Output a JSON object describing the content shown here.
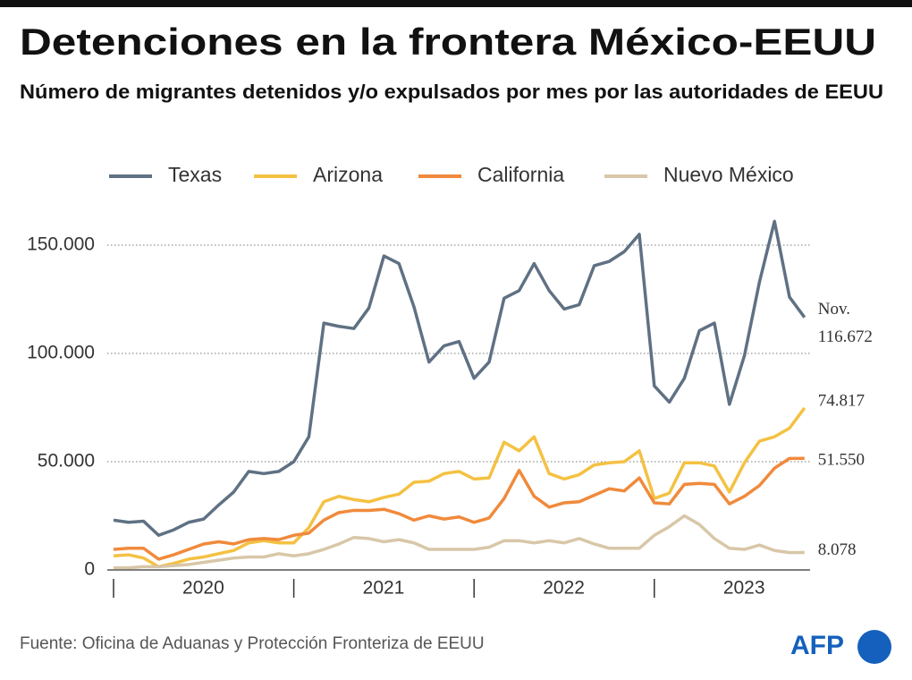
{
  "chart_data": {
    "type": "line",
    "title": "Detenciones en la frontera México-EEUU",
    "subtitle": "Número de migrantes detenidos y/o expulsados por mes por las autoridades de EEUU",
    "source": "Fuente: Oficina de Aduanas y Protección Fronteriza de EEUU",
    "logo": "AFP",
    "annotation": "Nov.",
    "categories": [
      "2020",
      null,
      null,
      null,
      null,
      null,
      null,
      null,
      null,
      null,
      null,
      null,
      "2021",
      null,
      null,
      null,
      null,
      null,
      null,
      null,
      null,
      null,
      null,
      null,
      "2022",
      null,
      null,
      null,
      null,
      null,
      null,
      null,
      null,
      null,
      null,
      null,
      "2023",
      null,
      null,
      null,
      null,
      null,
      null,
      null,
      null,
      null,
      null
    ],
    "ylim": [
      0,
      160000
    ],
    "yticks": [
      0,
      {
        "value": 50000,
        "label": "50.000"
      },
      {
        "value": 100000,
        "label": "100.000"
      },
      {
        "value": 150000,
        "label": "150.000"
      }
    ],
    "grid": true,
    "legend": "top",
    "series": [
      {
        "name": "Texas",
        "color": "#5f7183",
        "values": [
          23000,
          22000,
          22500,
          16000,
          18500,
          22000,
          23500,
          30000,
          36000,
          45500,
          44500,
          45500,
          50000,
          61500,
          114000,
          112500,
          111500,
          121000,
          145000,
          141500,
          121500,
          96000,
          103500,
          105500,
          88500,
          96000,
          125500,
          129000,
          141500,
          129000,
          120500,
          122500,
          140500,
          142500,
          147000,
          155000,
          85000,
          77500,
          88500,
          110500,
          114000,
          76500,
          99000,
          133000,
          161000,
          126000,
          116672
        ],
        "value_labels": [
          null,
          null,
          null,
          null,
          null,
          null,
          null,
          null,
          null,
          null,
          null,
          null,
          null,
          null,
          null,
          null,
          null,
          null,
          null,
          null,
          null,
          null,
          null,
          null,
          null,
          null,
          null,
          null,
          null,
          null,
          null,
          null,
          null,
          null,
          null,
          null,
          null,
          null,
          null,
          null,
          null,
          null,
          null,
          null,
          null,
          null,
          "116.672"
        ]
      },
      {
        "name": "Arizona",
        "color": "#f4c142",
        "values": [
          6500,
          7000,
          5500,
          1500,
          3000,
          5000,
          6000,
          7500,
          9000,
          12500,
          13500,
          12500,
          12500,
          19500,
          31500,
          34000,
          32500,
          31500,
          33500,
          35000,
          40500,
          41000,
          44500,
          45500,
          42000,
          42500,
          59000,
          55000,
          61500,
          44500,
          42000,
          44000,
          48500,
          49500,
          50000,
          55000,
          33000,
          35500,
          49500,
          49500,
          48000,
          36000,
          49500,
          59500,
          61500,
          65500,
          74817
        ],
        "value_labels": [
          null,
          null,
          null,
          null,
          null,
          null,
          null,
          null,
          null,
          null,
          null,
          null,
          null,
          null,
          null,
          null,
          null,
          null,
          null,
          null,
          null,
          null,
          null,
          null,
          null,
          null,
          null,
          null,
          null,
          null,
          null,
          null,
          null,
          null,
          null,
          null,
          null,
          null,
          null,
          null,
          null,
          null,
          null,
          null,
          null,
          null,
          "74.817"
        ]
      },
      {
        "name": "California",
        "color": "#f08a3c",
        "values": [
          9500,
          10000,
          10000,
          5000,
          7000,
          9500,
          12000,
          13000,
          12000,
          14000,
          14500,
          14000,
          16000,
          17000,
          23000,
          26500,
          27500,
          27500,
          28000,
          26000,
          23000,
          25000,
          23500,
          24500,
          22000,
          24000,
          33000,
          46000,
          34000,
          29000,
          31000,
          31500,
          34500,
          37500,
          36500,
          42500,
          31000,
          30500,
          39500,
          40000,
          39500,
          30500,
          34000,
          39000,
          47000,
          51500,
          51550
        ],
        "value_labels": [
          null,
          null,
          null,
          null,
          null,
          null,
          null,
          null,
          null,
          null,
          null,
          null,
          null,
          null,
          null,
          null,
          null,
          null,
          null,
          null,
          null,
          null,
          null,
          null,
          null,
          null,
          null,
          null,
          null,
          null,
          null,
          null,
          null,
          null,
          null,
          null,
          null,
          null,
          null,
          null,
          null,
          null,
          null,
          null,
          null,
          null,
          "51.550"
        ]
      },
      {
        "name": "Nuevo México",
        "color": "#d8c7a8",
        "values": [
          1000,
          1000,
          1500,
          1500,
          2000,
          2500,
          3500,
          4500,
          5500,
          6000,
          6000,
          7500,
          6500,
          7500,
          9500,
          12000,
          15000,
          14500,
          13000,
          14000,
          12500,
          9500,
          9500,
          9500,
          9500,
          10500,
          13500,
          13500,
          12500,
          13500,
          12500,
          14500,
          12000,
          10000,
          10000,
          10000,
          16000,
          20000,
          25000,
          21000,
          14500,
          10000,
          9500,
          11500,
          9000,
          8000,
          8078
        ],
        "value_labels": [
          null,
          null,
          null,
          null,
          null,
          null,
          null,
          null,
          null,
          null,
          null,
          null,
          null,
          null,
          null,
          null,
          null,
          null,
          null,
          null,
          null,
          null,
          null,
          null,
          null,
          null,
          null,
          null,
          null,
          null,
          null,
          null,
          null,
          null,
          null,
          null,
          null,
          null,
          null,
          null,
          null,
          null,
          null,
          null,
          null,
          null,
          "8.078"
        ]
      }
    ]
  }
}
